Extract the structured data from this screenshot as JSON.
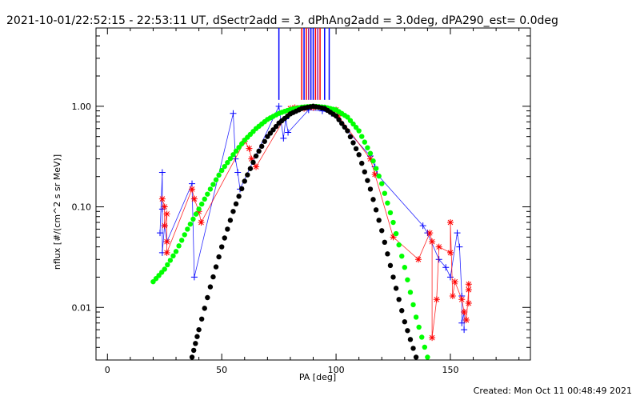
{
  "chart_data": {
    "type": "scatter",
    "title": "2021-10-01/22:52:15 - 22:53:11 UT, dSectr2add = 3, dPhAng2add = 3.0deg, dPA290_est=  0.0deg",
    "xlabel": "PA [deg]",
    "ylabel": "nflux [#/(cm^2 s sr MeV)]",
    "footer": "Created: Mon Oct 11 00:48:49 2021",
    "x_scale": "linear",
    "y_scale": "log",
    "xlim": [
      -5,
      185
    ],
    "ylim": [
      0.003,
      6
    ],
    "x_ticks": [
      0,
      50,
      100,
      150
    ],
    "x_tick_labels": [
      "0",
      "50",
      "100",
      "150"
    ],
    "y_ticks": [
      0.01,
      0.1,
      1.0
    ],
    "y_tick_labels": [
      "0.01",
      "0.10",
      "1.00"
    ],
    "colors": {
      "blue": "#0000ff",
      "red": "#ff0000",
      "green": "#00ff00",
      "black": "#000000",
      "purple": "#9a1a9a"
    },
    "series": [
      {
        "color": "blue",
        "marker": "plus",
        "points": [
          [
            24,
            0.22
          ],
          [
            24,
            0.095
          ],
          [
            25,
            0.065
          ],
          [
            23,
            0.055
          ],
          [
            26,
            0.045
          ],
          [
            24,
            0.035
          ],
          [
            37,
            0.17
          ],
          [
            38,
            0.02
          ],
          [
            55,
            0.85
          ],
          [
            56,
            0.3
          ],
          [
            57,
            0.22
          ],
          [
            58,
            0.15
          ],
          [
            75,
            1.0
          ],
          [
            77,
            0.48
          ],
          [
            78,
            0.75
          ],
          [
            79,
            0.55
          ],
          [
            88,
            0.92
          ],
          [
            94,
            0.9
          ],
          [
            98,
            0.85
          ],
          [
            115,
            0.32
          ],
          [
            117,
            0.25
          ],
          [
            118,
            0.21
          ],
          [
            138,
            0.065
          ],
          [
            140,
            0.055
          ],
          [
            145,
            0.03
          ],
          [
            148,
            0.025
          ],
          [
            150,
            0.02
          ],
          [
            153,
            0.055
          ],
          [
            154,
            0.04
          ],
          [
            155,
            0.013
          ],
          [
            156,
            0.009
          ],
          [
            155,
            0.007
          ],
          [
            156,
            0.006
          ]
        ]
      },
      {
        "color": "red",
        "marker": "star",
        "points": [
          [
            24,
            0.12
          ],
          [
            25,
            0.1
          ],
          [
            26,
            0.085
          ],
          [
            25,
            0.065
          ],
          [
            26,
            0.045
          ],
          [
            26,
            0.035
          ],
          [
            37,
            0.15
          ],
          [
            38,
            0.12
          ],
          [
            40,
            0.09
          ],
          [
            41,
            0.07
          ],
          [
            60,
            0.45
          ],
          [
            62,
            0.38
          ],
          [
            63,
            0.3
          ],
          [
            65,
            0.25
          ],
          [
            80,
            0.95
          ],
          [
            82,
            0.97
          ],
          [
            86,
            0.95
          ],
          [
            90,
            0.97
          ],
          [
            100,
            0.92
          ],
          [
            101,
            0.8
          ],
          [
            115,
            0.3
          ],
          [
            117,
            0.21
          ],
          [
            125,
            0.05
          ],
          [
            136,
            0.03
          ],
          [
            141,
            0.055
          ],
          [
            142,
            0.045
          ],
          [
            145,
            0.04
          ],
          [
            150,
            0.035
          ],
          [
            142,
            0.005
          ],
          [
            144,
            0.012
          ],
          [
            150,
            0.07
          ],
          [
            151,
            0.013
          ],
          [
            152,
            0.018
          ],
          [
            155,
            0.012
          ],
          [
            156,
            0.009
          ],
          [
            157,
            0.0075
          ],
          [
            158,
            0.015
          ],
          [
            158,
            0.017
          ],
          [
            158,
            0.011
          ]
        ]
      },
      {
        "color": "green",
        "marker": "dot",
        "points": [
          [
            20,
            0.018
          ],
          [
            25,
            0.024
          ],
          [
            30,
            0.036
          ],
          [
            35,
            0.06
          ],
          [
            40,
            0.095
          ],
          [
            45,
            0.15
          ],
          [
            50,
            0.23
          ],
          [
            55,
            0.33
          ],
          [
            60,
            0.46
          ],
          [
            65,
            0.6
          ],
          [
            70,
            0.74
          ],
          [
            75,
            0.85
          ],
          [
            80,
            0.93
          ],
          [
            85,
            0.98
          ],
          [
            90,
            1.0
          ],
          [
            95,
            0.98
          ],
          [
            100,
            0.92
          ],
          [
            105,
            0.78
          ],
          [
            110,
            0.57
          ],
          [
            115,
            0.34
          ],
          [
            120,
            0.17
          ],
          [
            125,
            0.07
          ],
          [
            130,
            0.025
          ],
          [
            135,
            0.008
          ],
          [
            140,
            0.0032
          ]
        ]
      },
      {
        "color": "black",
        "marker": "dot",
        "points": [
          [
            37,
            0.0032
          ],
          [
            40,
            0.006
          ],
          [
            45,
            0.016
          ],
          [
            50,
            0.04
          ],
          [
            55,
            0.09
          ],
          [
            60,
            0.18
          ],
          [
            65,
            0.32
          ],
          [
            70,
            0.5
          ],
          [
            75,
            0.68
          ],
          [
            80,
            0.84
          ],
          [
            85,
            0.95
          ],
          [
            90,
            1.0
          ],
          [
            95,
            0.95
          ],
          [
            100,
            0.8
          ],
          [
            105,
            0.57
          ],
          [
            110,
            0.33
          ],
          [
            115,
            0.15
          ],
          [
            120,
            0.058
          ],
          [
            125,
            0.02
          ],
          [
            130,
            0.0072
          ],
          [
            135,
            0.0032
          ]
        ]
      }
    ],
    "vertical_markers": [
      {
        "x": 75,
        "color": "blue"
      },
      {
        "x": 85,
        "color": "red"
      },
      {
        "x": 86,
        "color": "blue"
      },
      {
        "x": 87,
        "color": "red"
      },
      {
        "x": 88,
        "color": "purple"
      },
      {
        "x": 89,
        "color": "blue"
      },
      {
        "x": 90,
        "color": "blue"
      },
      {
        "x": 91,
        "color": "red"
      },
      {
        "x": 92,
        "color": "purple"
      },
      {
        "x": 93,
        "color": "red"
      },
      {
        "x": 95,
        "color": "blue"
      },
      {
        "x": 97,
        "color": "blue"
      }
    ]
  }
}
